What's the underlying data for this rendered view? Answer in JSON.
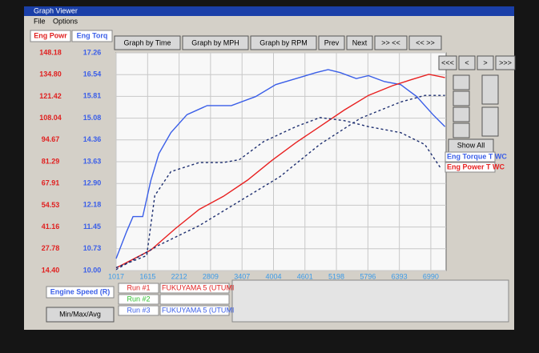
{
  "window": {
    "title": "Graph Viewer",
    "menu": [
      "File",
      "Options"
    ]
  },
  "toolbar": [
    "Graph by Time",
    "Graph by MPH",
    "Graph by RPM",
    "Prev",
    "Next",
    ">> <<",
    "<< >>",
    "<<<",
    "<",
    ">",
    ">>>"
  ],
  "show_all": "Show All",
  "chart_data": {
    "type": "line",
    "y_label": "Eng Powr",
    "y2_label": "Eng Torq",
    "x_label": "Engine Speed (R)",
    "xlim": [
      1017,
      7280
    ],
    "xticks": [
      1017,
      1615,
      2212,
      2809,
      3407,
      4004,
      4601,
      5198,
      5796,
      6393,
      6990
    ],
    "ylim": [
      14.4,
      148.18
    ],
    "yticks": [
      {
        "value": 14.4,
        "label": "14.40"
      },
      27.78,
      41.16,
      54.53,
      67.91,
      81.29,
      94.67,
      108.04,
      121.42,
      {
        "value": 134.8,
        "label": "134.80"
      },
      148.18
    ],
    "y2lim": [
      10,
      17.26
    ],
    "y2ticks": [
      {
        "value": 10,
        "label": "10.00"
      },
      10.73,
      11.45,
      12.18,
      {
        "value": 12.9,
        "label": "12.90"
      },
      13.63,
      14.36,
      15.08,
      15.81,
      16.54,
      17.26
    ],
    "grid": true,
    "series": [
      {
        "name": "Eng Torque T WC",
        "color": "#3a5ee8",
        "axis": "y2",
        "dashed": false,
        "x": [
          1017,
          1216,
          1338,
          1522,
          1675,
          1828,
          2057,
          2363,
          2746,
          3205,
          3664,
          4046,
          4429,
          4811,
          5041,
          5270,
          5576,
          5806,
          6112,
          6418,
          6724,
          7030,
          7259
        ],
        "values": [
          10.4,
          11.3,
          11.8,
          11.8,
          13.0,
          13.9,
          14.6,
          15.2,
          15.5,
          15.5,
          15.8,
          16.2,
          16.4,
          16.6,
          16.7,
          16.6,
          16.4,
          16.5,
          16.3,
          16.2,
          15.8,
          15.2,
          14.8
        ]
      },
      {
        "name": "Eng Power T WC",
        "color": "#e82020",
        "dashed": false,
        "x": [
          1017,
          1675,
          2134,
          2593,
          3052,
          3511,
          3970,
          4429,
          4888,
          5347,
          5806,
          6265,
          6647,
          6953,
          7259
        ],
        "values": [
          16,
          27,
          40,
          52,
          60,
          70,
          82,
          93,
          103,
          113,
          122,
          128,
          132,
          135,
          133
        ]
      },
      {
        "color": "#1e2f70",
        "axis": "y2",
        "dashed": true,
        "x": [
          1017,
          1598,
          1751,
          2057,
          2593,
          3052,
          3358,
          3817,
          4429,
          4888,
          5347,
          5806,
          6418,
          6877,
          7183
        ],
        "values": [
          10.1,
          10.5,
          12.5,
          13.3,
          13.6,
          13.6,
          13.7,
          14.3,
          14.8,
          15.1,
          15.0,
          14.8,
          14.6,
          14.2,
          13.4
        ]
      },
      {
        "color": "#1e2f70",
        "dashed": true,
        "x": [
          1017,
          1828,
          2593,
          3358,
          4123,
          4888,
          5653,
          6418,
          6877,
          7259
        ],
        "values": [
          15,
          30,
          42,
          57,
          72,
          92,
          108,
          118,
          122,
          122
        ]
      }
    ]
  },
  "runs": [
    {
      "label": "Run #1",
      "name": "FUKUYAMA 5 (UTUMI"
    },
    {
      "label": "Run #2"
    },
    {
      "label": "Run #3",
      "name": "FUKUYAMA 5 (UTUMI"
    }
  ],
  "footer_button": "Min/Max/Avg"
}
